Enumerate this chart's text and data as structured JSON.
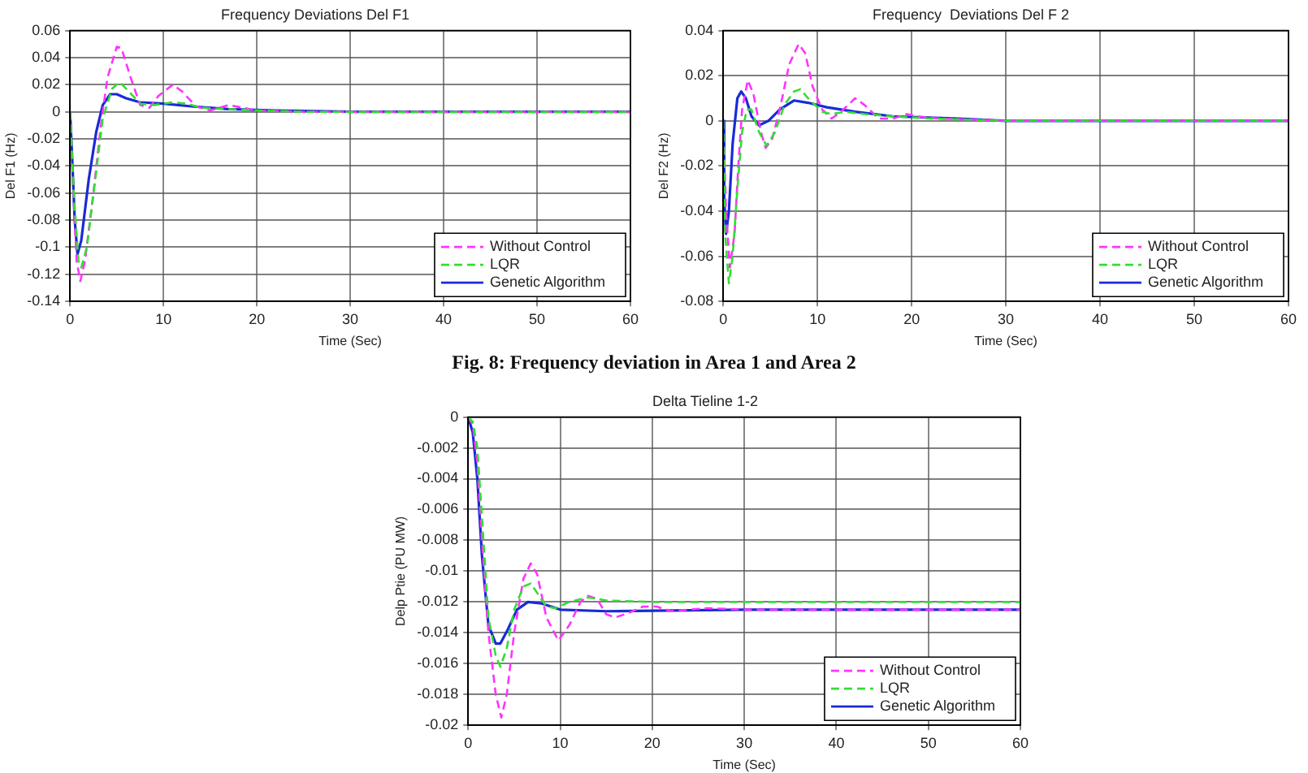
{
  "chart_data": [
    {
      "type": "line",
      "title": "Frequency Deviations Del F1",
      "xlabel": "Time (Sec)",
      "ylabel": "Del F1 (Hz)",
      "xlim": [
        0,
        60
      ],
      "xticks": [
        0,
        10,
        20,
        30,
        40,
        50,
        60
      ],
      "ylim": [
        -0.14,
        0.06
      ],
      "yticks": [
        -0.14,
        -0.12,
        -0.1,
        -0.08,
        -0.06,
        -0.04,
        -0.02,
        0,
        0.02,
        0.04,
        0.06
      ],
      "grid": true,
      "legend": "bottom right",
      "annotations": [
        "Fig. 8: Frequency deviation in Area 1 and Area 2"
      ],
      "series": [
        {
          "name": "Without Control",
          "color": "#ff33ff",
          "line_style": "dashed",
          "x": [
            0,
            0.3,
            0.7,
            1.1,
            1.6,
            2.5,
            3.3,
            4,
            5,
            5.5,
            6.5,
            7.5,
            8.5,
            9.5,
            11,
            12,
            13.5,
            15,
            17,
            18.5,
            20,
            25,
            30,
            60
          ],
          "values": [
            0,
            -0.05,
            -0.11,
            -0.125,
            -0.11,
            -0.06,
            -0.01,
            0.025,
            0.048,
            0.047,
            0.025,
            0.005,
            0.003,
            0.012,
            0.02,
            0.015,
            0.004,
            0.001,
            0.005,
            0.003,
            0.001,
            0,
            0,
            0
          ]
        },
        {
          "name": "LQR",
          "color": "#33dd33",
          "line_style": "dashed",
          "x": [
            0,
            0.4,
            0.9,
            1.2,
            1.8,
            2.7,
            3.5,
            4.5,
            5.3,
            6.3,
            7.5,
            9,
            11,
            12.5,
            14,
            17,
            20,
            25,
            60
          ],
          "values": [
            0,
            -0.06,
            -0.11,
            -0.115,
            -0.1,
            -0.05,
            -0.005,
            0.017,
            0.022,
            0.015,
            0.006,
            0.005,
            0.007,
            0.006,
            0.003,
            0.002,
            0.001,
            0,
            0
          ]
        },
        {
          "name": "Genetic Algorithm",
          "color": "#1a2ad6",
          "line_style": "solid",
          "x": [
            0,
            0.2,
            0.5,
            0.8,
            1.2,
            2,
            2.8,
            3.5,
            4.3,
            5,
            6,
            7.5,
            10,
            13,
            17,
            22,
            30,
            60
          ],
          "values": [
            0,
            -0.03,
            -0.08,
            -0.105,
            -0.095,
            -0.05,
            -0.015,
            0.005,
            0.013,
            0.013,
            0.01,
            0.007,
            0.006,
            0.004,
            0.002,
            0.001,
            0,
            0
          ]
        }
      ]
    },
    {
      "type": "line",
      "title": "Frequency  Deviations Del F 2",
      "xlabel": "Time (Sec)",
      "ylabel": "Del F2 (Hz)",
      "xlim": [
        0,
        60
      ],
      "xticks": [
        0,
        10,
        20,
        30,
        40,
        50,
        60
      ],
      "ylim": [
        -0.08,
        0.04
      ],
      "yticks": [
        -0.08,
        -0.06,
        -0.04,
        -0.02,
        0,
        0.02,
        0.04
      ],
      "grid": true,
      "legend": "bottom right",
      "series": [
        {
          "name": "Without Control",
          "color": "#ff33ff",
          "line_style": "dashed",
          "x": [
            0,
            0.3,
            0.7,
            1.2,
            1.6,
            2,
            2.6,
            3.2,
            4,
            4.5,
            5.2,
            6,
            7,
            8,
            8.7,
            9.5,
            10.5,
            11.5,
            12.5,
            14,
            15,
            16.5,
            18,
            19.5,
            20.5,
            23,
            30,
            60
          ],
          "values": [
            0,
            -0.04,
            -0.065,
            -0.05,
            -0.02,
            0.005,
            0.018,
            0.012,
            -0.005,
            -0.012,
            -0.008,
            0.005,
            0.025,
            0.034,
            0.03,
            0.015,
            0.005,
            0.001,
            0.004,
            0.01,
            0.007,
            0.001,
            0.001,
            0.003,
            0.002,
            0.001,
            0,
            0
          ]
        },
        {
          "name": "LQR",
          "color": "#33dd33",
          "line_style": "dashed",
          "x": [
            0,
            0.2,
            0.6,
            1,
            1.5,
            2,
            2.5,
            3,
            3.8,
            4.6,
            5.5,
            6.5,
            7.5,
            8.2,
            9,
            10.5,
            11.5,
            13,
            15,
            18,
            22,
            30,
            60
          ],
          "values": [
            0,
            -0.05,
            -0.072,
            -0.06,
            -0.03,
            -0.005,
            0.005,
            0.005,
            -0.005,
            -0.011,
            -0.005,
            0.007,
            0.013,
            0.014,
            0.01,
            0.004,
            0.003,
            0.004,
            0.003,
            0.002,
            0.001,
            0,
            0
          ]
        },
        {
          "name": "Genetic Algorithm",
          "color": "#1a2ad6",
          "line_style": "solid",
          "x": [
            0,
            0.1,
            0.3,
            0.6,
            1,
            1.5,
            1.9,
            2.4,
            3,
            3.8,
            4.8,
            6,
            7.5,
            9,
            11,
            14,
            18,
            25,
            30,
            60
          ],
          "values": [
            0,
            -0.035,
            -0.05,
            -0.04,
            -0.01,
            0.01,
            0.013,
            0.01,
            0.002,
            -0.002,
            0,
            0.005,
            0.009,
            0.008,
            0.006,
            0.004,
            0.002,
            0.001,
            0,
            0
          ]
        }
      ]
    },
    {
      "type": "line",
      "title": "Delta Tieline 1-2",
      "xlabel": "Time (Sec)",
      "ylabel": "Delp Ptie (PU MW)",
      "xlim": [
        0,
        60
      ],
      "xticks": [
        0,
        10,
        20,
        30,
        40,
        50,
        60
      ],
      "ylim": [
        -0.02,
        0
      ],
      "yticks": [
        -0.02,
        -0.018,
        -0.016,
        -0.014,
        -0.012,
        -0.01,
        -0.008,
        -0.006,
        -0.004,
        -0.002,
        0
      ],
      "grid": true,
      "legend": "bottom right",
      "series": [
        {
          "name": "Without Control",
          "color": "#ff33ff",
          "line_style": "dashed",
          "x": [
            0,
            0.5,
            1,
            1.5,
            2.2,
            3,
            3.6,
            4.2,
            5,
            6,
            6.8,
            7.5,
            8.5,
            9.8,
            11,
            12.2,
            13,
            14,
            15,
            16,
            17.5,
            19,
            20.5,
            22,
            24,
            26,
            30,
            60
          ],
          "values": [
            0,
            -0.0005,
            -0.003,
            -0.008,
            -0.014,
            -0.018,
            -0.0195,
            -0.018,
            -0.014,
            -0.0105,
            -0.0095,
            -0.0102,
            -0.013,
            -0.0145,
            -0.0135,
            -0.012,
            -0.0116,
            -0.0118,
            -0.0128,
            -0.013,
            -0.0127,
            -0.0123,
            -0.0123,
            -0.0126,
            -0.0125,
            -0.0124,
            -0.0125,
            -0.0125
          ]
        },
        {
          "name": "LQR",
          "color": "#33dd33",
          "line_style": "dashed",
          "x": [
            0,
            0.5,
            1,
            1.5,
            2.2,
            3,
            3.5,
            4.2,
            5,
            6,
            6.8,
            7.6,
            8.5,
            9.5,
            11,
            13,
            15,
            20,
            60
          ],
          "values": [
            0,
            -0.0003,
            -0.002,
            -0.0065,
            -0.013,
            -0.0155,
            -0.0162,
            -0.015,
            -0.0125,
            -0.011,
            -0.0108,
            -0.0115,
            -0.0123,
            -0.0124,
            -0.012,
            -0.0117,
            -0.0119,
            -0.012,
            -0.012
          ]
        },
        {
          "name": "Genetic Algorithm",
          "color": "#1a2ad6",
          "line_style": "solid",
          "x": [
            0,
            0.5,
            1,
            1.5,
            2.2,
            3,
            3.5,
            4.3,
            5.3,
            6.5,
            8,
            10,
            15,
            30,
            60
          ],
          "values": [
            0,
            -0.001,
            -0.004,
            -0.009,
            -0.0135,
            -0.0147,
            -0.0147,
            -0.0138,
            -0.0125,
            -0.012,
            -0.0121,
            -0.0125,
            -0.0126,
            -0.0125,
            -0.0125
          ]
        }
      ]
    }
  ]
}
